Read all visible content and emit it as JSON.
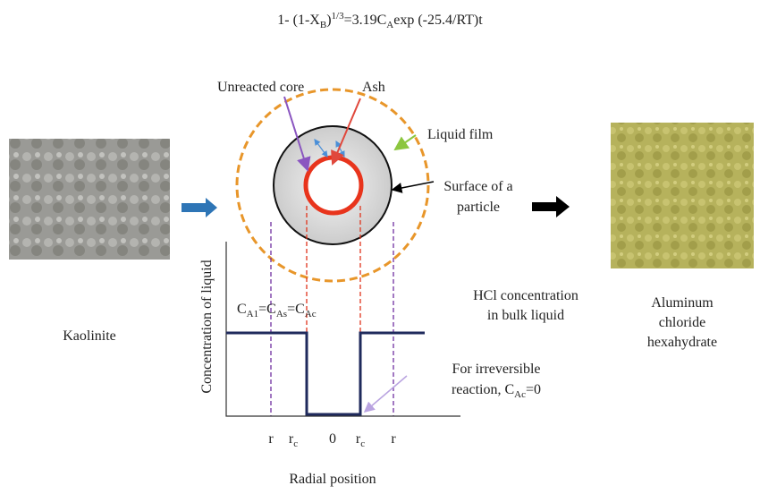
{
  "equation": {
    "parts": [
      "1- (1-X",
      "B",
      ")",
      "1/3",
      "=3.19C",
      "A",
      "exp (-25.4/RT)t"
    ]
  },
  "particle": {
    "unreacted_core": "Unreacted core",
    "ash": "Ash",
    "liquid_film": "Liquid film",
    "surface": [
      "Surface of a",
      "particle"
    ]
  },
  "input": {
    "label": "Kaolinite"
  },
  "output": {
    "label": [
      "Aluminum",
      "chloride",
      "hexahydrate"
    ]
  },
  "profile": {
    "y_axis": "Concentration of liquid",
    "x_axis": "Radial position",
    "bulk": [
      "HCl concentration",
      "in bulk liquid"
    ],
    "equality": [
      "C",
      "A1",
      "=C",
      "As",
      "=C",
      "Ac"
    ],
    "note": [
      "For irreversible",
      "reaction, C",
      "Ac",
      "=0"
    ],
    "ticks": [
      [
        "r"
      ],
      [
        "r",
        "c"
      ],
      [
        "0"
      ],
      [
        "r",
        "c"
      ],
      [
        "r"
      ]
    ]
  }
}
